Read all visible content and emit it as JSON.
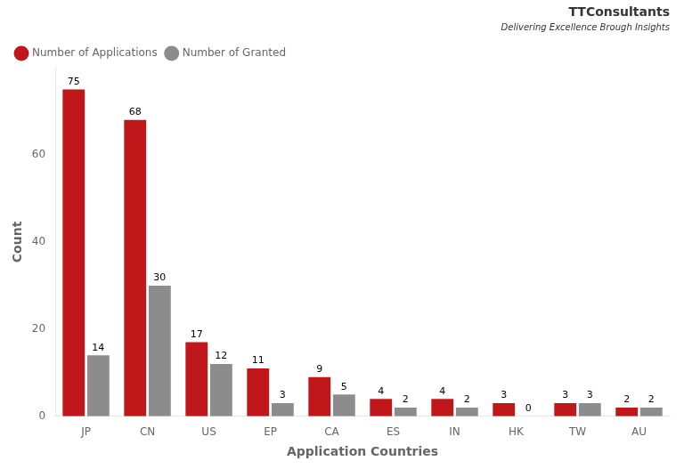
{
  "chart_data": {
    "type": "bar",
    "categories": [
      "JP",
      "CN",
      "US",
      "EP",
      "CA",
      "ES",
      "IN",
      "HK",
      "TW",
      "AU"
    ],
    "series": [
      {
        "name": "Number of Applications",
        "color": "#C0181A",
        "values": [
          75,
          68,
          17,
          11,
          9,
          4,
          4,
          3,
          3,
          2
        ]
      },
      {
        "name": "Number of Granted",
        "color": "#8C8C8C",
        "values": [
          14,
          30,
          12,
          3,
          5,
          2,
          2,
          0,
          3,
          2
        ]
      }
    ],
    "xlabel": "Application Countries",
    "ylabel": "Count",
    "ylim": [
      0,
      80
    ],
    "yticks": [
      0,
      20,
      40,
      60
    ],
    "grid": false,
    "legend": "upper left",
    "data_labels": true,
    "annotations": [
      "TTConsultants",
      "Delivering Excellence Brough Insights"
    ]
  }
}
